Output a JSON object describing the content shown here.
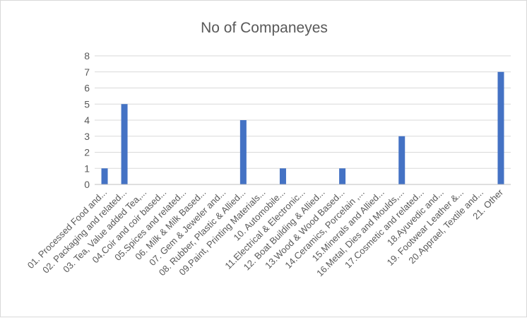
{
  "chart_data": {
    "type": "bar",
    "title": "No of Companeyes",
    "xlabel": "",
    "ylabel": "",
    "ylim": [
      0,
      8
    ],
    "yticks": [
      0,
      1,
      2,
      3,
      4,
      5,
      6,
      7,
      8
    ],
    "grid": true,
    "legend": "none",
    "bar_color": "#4472c4",
    "categories": [
      "01. Processed Food and...",
      "02. Packaging and related...",
      "03. Tea, Value added Tea,...",
      "04.Coir and coir based...",
      "05.Spices and related...",
      "06. Milk & Milk Based...",
      "07. Gem & Jeweler and...",
      "08. Rubber, Plastic & Allied...",
      "09.Paint, Printing Materials...",
      "10. Automobile...",
      "11.Electrical & Electronic...",
      "12. Boat Building & Allied...",
      "13.Wood & Wood Based...",
      "14.Ceramics, Porcelain ,...",
      "15.Minerals and Allied...",
      "16.Metal, Dies and Moulds,...",
      "17.Cosmetic and related...",
      "18.Ayuvedic and...",
      "19. Footwear Leather &...",
      "20.Apprael, Textile and...",
      "21. Other"
    ],
    "values": [
      1,
      5,
      0,
      0,
      0,
      0,
      0,
      4,
      0,
      1,
      0,
      0,
      1,
      0,
      0,
      3,
      0,
      0,
      0,
      0,
      7
    ]
  }
}
